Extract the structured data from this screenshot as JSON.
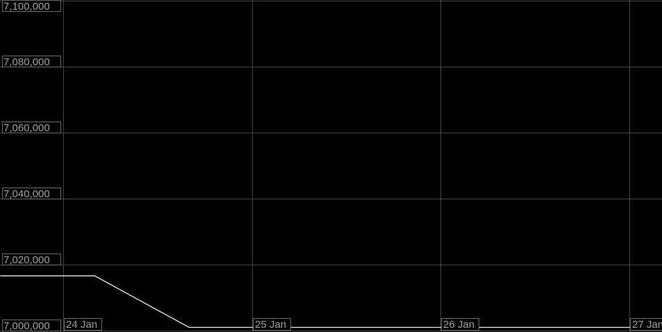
{
  "chart_data": {
    "type": "line",
    "title": "",
    "xlabel": "",
    "ylabel": "",
    "ylim": [
      7000000,
      7100000
    ],
    "xlim": [
      "2024-01-23T16:00",
      "2024-01-27T05:30"
    ],
    "grid": true,
    "y_ticks": [
      {
        "value": 7000000,
        "label": "7,000,000"
      },
      {
        "value": 7020000,
        "label": "7,020,000"
      },
      {
        "value": 7040000,
        "label": "7,040,000"
      },
      {
        "value": 7060000,
        "label": "7,060,000"
      },
      {
        "value": 7080000,
        "label": "7,080,000"
      },
      {
        "value": 7100000,
        "label": "7,100,000"
      }
    ],
    "x_ticks": [
      {
        "value": "2024-01-24T00:00",
        "label": "24 Jan"
      },
      {
        "value": "2024-01-25T00:00",
        "label": "25 Jan"
      },
      {
        "value": "2024-01-26T00:00",
        "label": "26 Jan"
      },
      {
        "value": "2024-01-27T00:00",
        "label": "27 Jan"
      }
    ],
    "series": [
      {
        "points": [
          {
            "x": "2024-01-23T16:00",
            "y": 7016600
          },
          {
            "x": "2024-01-24T04:00",
            "y": 7016600
          },
          {
            "x": "2024-01-24T16:00",
            "y": 7001000
          },
          {
            "x": "2024-01-27T05:30",
            "y": 7001000
          }
        ]
      }
    ],
    "colors": {
      "background": "#000000",
      "line": "#ffffff",
      "grid": "#444444",
      "label": "#a0a0a0"
    }
  }
}
